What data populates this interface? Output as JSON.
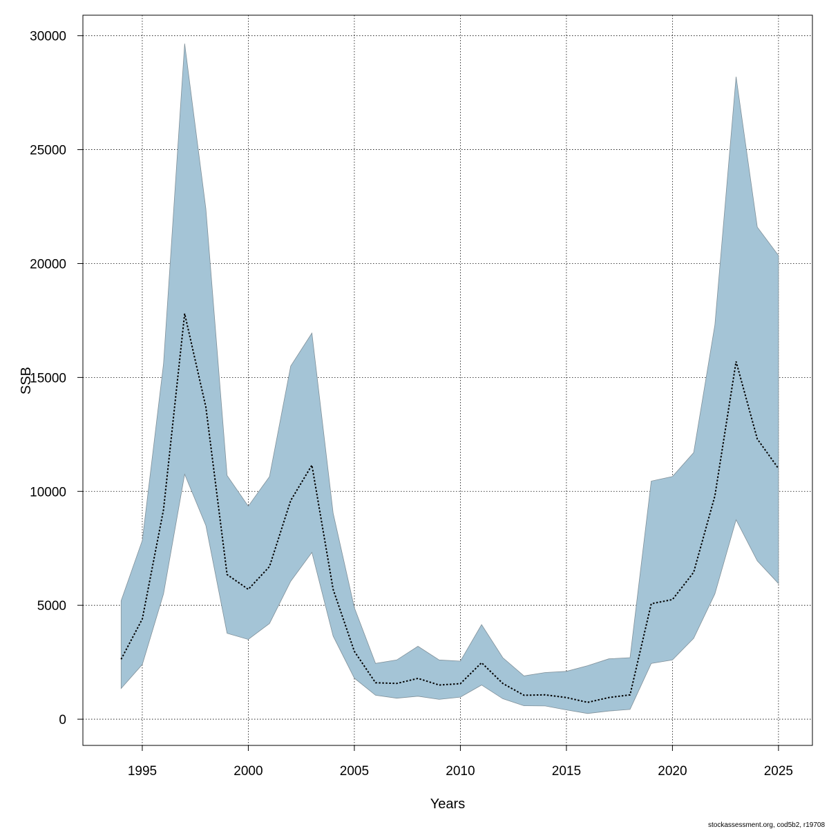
{
  "chart_data": {
    "type": "area",
    "title": "",
    "xlabel": "Years",
    "ylabel": "SSB",
    "xlim": [
      1992.2,
      2026.6
    ],
    "ylim": [
      -1150,
      30900
    ],
    "grid": true,
    "x_ticks": [
      1995,
      2000,
      2005,
      2010,
      2015,
      2020,
      2025
    ],
    "y_ticks": [
      0,
      5000,
      10000,
      15000,
      20000,
      25000,
      30000
    ],
    "x": [
      1994,
      1995,
      1996,
      1997,
      1998,
      1999,
      2000,
      2001,
      2002,
      2003,
      2004,
      2005,
      2006,
      2007,
      2008,
      2009,
      2010,
      2011,
      2012,
      2013,
      2014,
      2015,
      2016,
      2017,
      2018,
      2019,
      2020,
      2021,
      2022,
      2023,
      2024,
      2025
    ],
    "series": [
      {
        "values": [
          2630,
          4400,
          9200,
          17800,
          13700,
          6350,
          5700,
          6700,
          9600,
          11150,
          5700,
          2980,
          1600,
          1570,
          1790,
          1500,
          1560,
          2480,
          1570,
          1050,
          1070,
          950,
          740,
          950,
          1070,
          5070,
          5250,
          6450,
          9800,
          15700,
          12300,
          11000
        ],
        "lower": [
          1350,
          2400,
          5500,
          10750,
          8500,
          3770,
          3500,
          4200,
          6050,
          7320,
          3650,
          1800,
          1050,
          920,
          1010,
          870,
          970,
          1500,
          900,
          590,
          580,
          410,
          250,
          360,
          430,
          2450,
          2600,
          3550,
          5500,
          8750,
          6950,
          5950
        ],
        "upper": [
          5200,
          7850,
          15600,
          29650,
          22400,
          10700,
          9350,
          10650,
          15500,
          16950,
          9050,
          4900,
          2450,
          2600,
          3200,
          2600,
          2550,
          4150,
          2700,
          1900,
          2050,
          2100,
          2350,
          2650,
          2700,
          10450,
          10650,
          11700,
          17300,
          28200,
          21600,
          20350
        ]
      }
    ],
    "colors": {
      "band": "#a4c4d6",
      "band_stroke": "#7f8f98",
      "line": "#000000"
    }
  },
  "footer": {
    "credit": "stockassessment.org, cod5b2, r19708"
  }
}
